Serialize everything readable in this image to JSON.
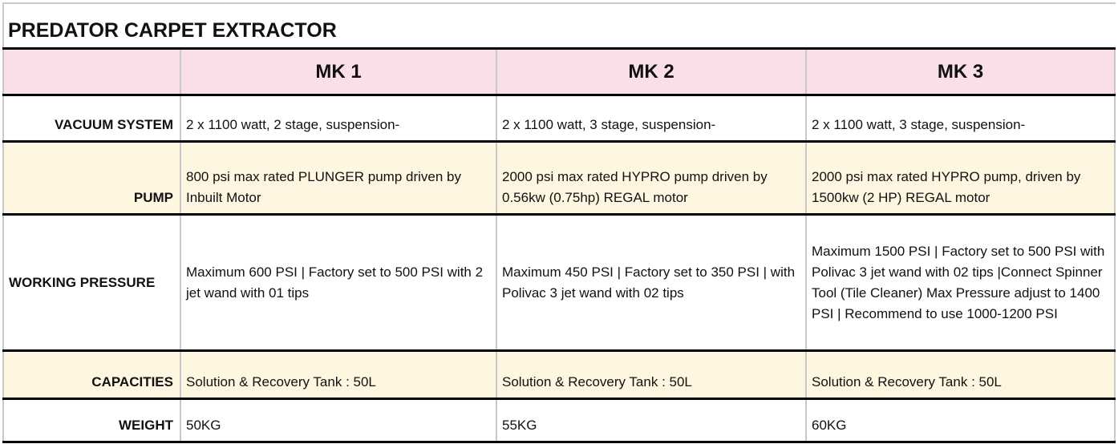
{
  "title": "PREDATOR CARPET EXTRACTOR",
  "columns": [
    "",
    "MK 1",
    "MK 2",
    "MK 3"
  ],
  "rows": [
    {
      "label": "VACUUM SYSTEM",
      "values": [
        "2 x 1100 watt, 2 stage, suspension-",
        "2 x 1100 watt, 3 stage, suspension-",
        "2 x 1100 watt, 3 stage, suspension-"
      ]
    },
    {
      "label": "PUMP",
      "values": [
        "800 psi max rated PLUNGER pump driven by Inbuilt Motor",
        "2000 psi max rated HYPRO pump driven by 0.56kw (0.75hp) REGAL motor",
        "2000 psi max rated HYPRO pump, driven by 1500kw (2 HP) REGAL motor"
      ]
    },
    {
      "label": "WORKING PRESSURE",
      "values": [
        "Maximum 600 PSI | Factory set to 500 PSI with 2 jet wand with 01 tips",
        "Maximum 450 PSI | Factory set to 350 PSI | with Polivac 3 jet wand with 02 tips",
        "Maximum 1500 PSI | Factory set to 500 PSI with Polivac 3 jet wand with 02 tips |Connect Spinner Tool (Tile Cleaner)  Max Pressure adjust to 1400 PSI | Recommend to use 1000-1200 PSI"
      ]
    },
    {
      "label": "CAPACITIES",
      "values": [
        "Solution & Recovery Tank : 50L",
        "Solution & Recovery Tank : 50L",
        "Solution & Recovery Tank : 50L"
      ]
    },
    {
      "label": "WEIGHT",
      "values": [
        "50KG",
        "55KG",
        "60KG"
      ]
    }
  ],
  "colors": {
    "header_bg": "#fbdfe8",
    "alt_row_bg": "#fff6e1"
  }
}
